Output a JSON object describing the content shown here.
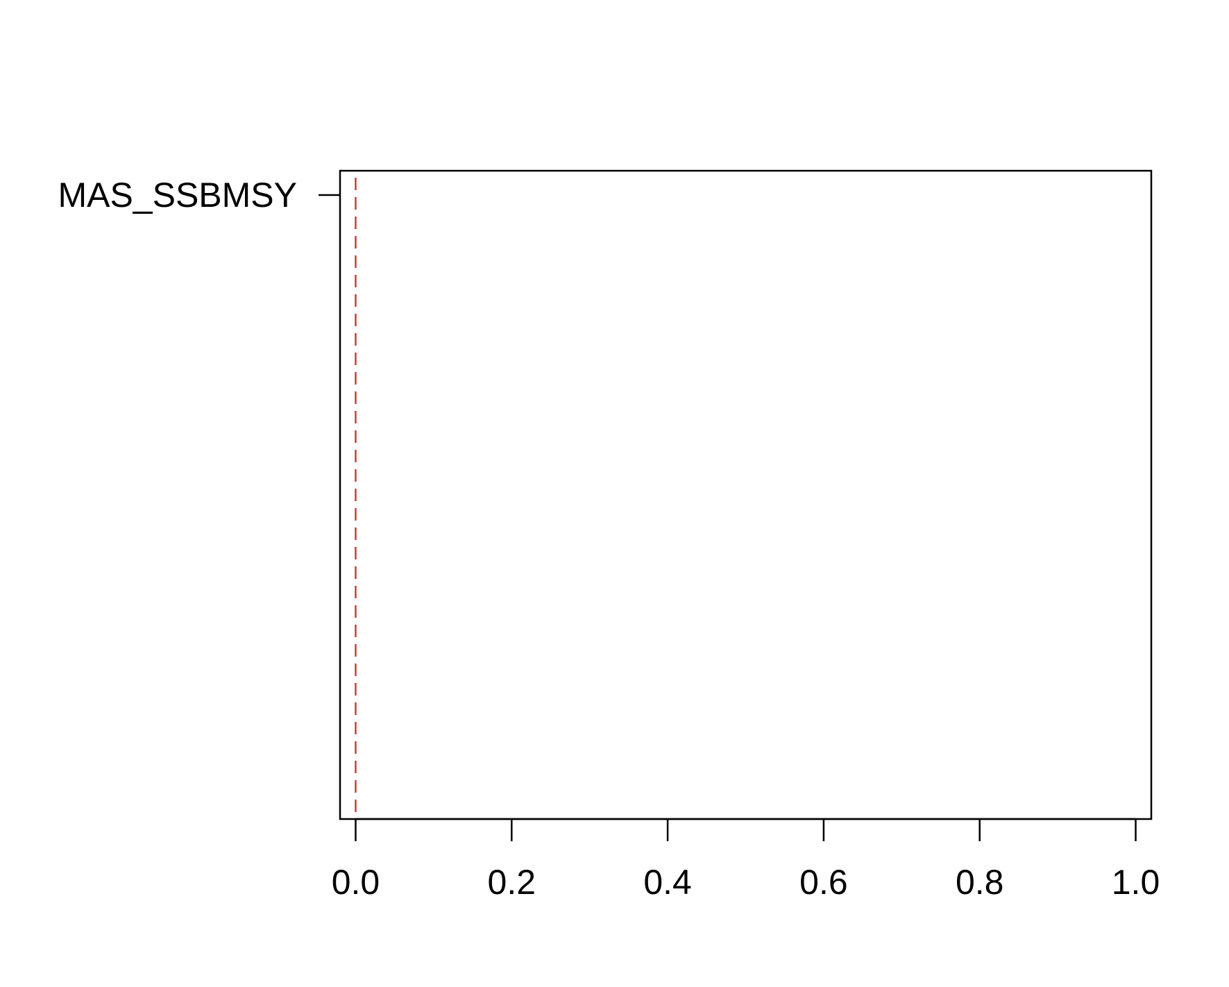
{
  "chart_data": {
    "type": "bar",
    "orientation": "horizontal",
    "categories": [
      "MAS_SSBMSY"
    ],
    "values": [
      0
    ],
    "title": "",
    "xlabel": "",
    "ylabel": "",
    "xlim": [
      -0.02,
      1.02
    ],
    "x_ticks": [
      0.0,
      0.2,
      0.4,
      0.6,
      0.8,
      1.0
    ],
    "x_tick_labels": [
      "0.0",
      "0.2",
      "0.4",
      "0.6",
      "0.8",
      "1.0"
    ],
    "reference_line": {
      "x": 0,
      "style": "dashed",
      "color": "#b5453a"
    },
    "grid": false,
    "legend": "none",
    "colors": {
      "axis": "#000000",
      "reference": "#b5453a"
    }
  }
}
